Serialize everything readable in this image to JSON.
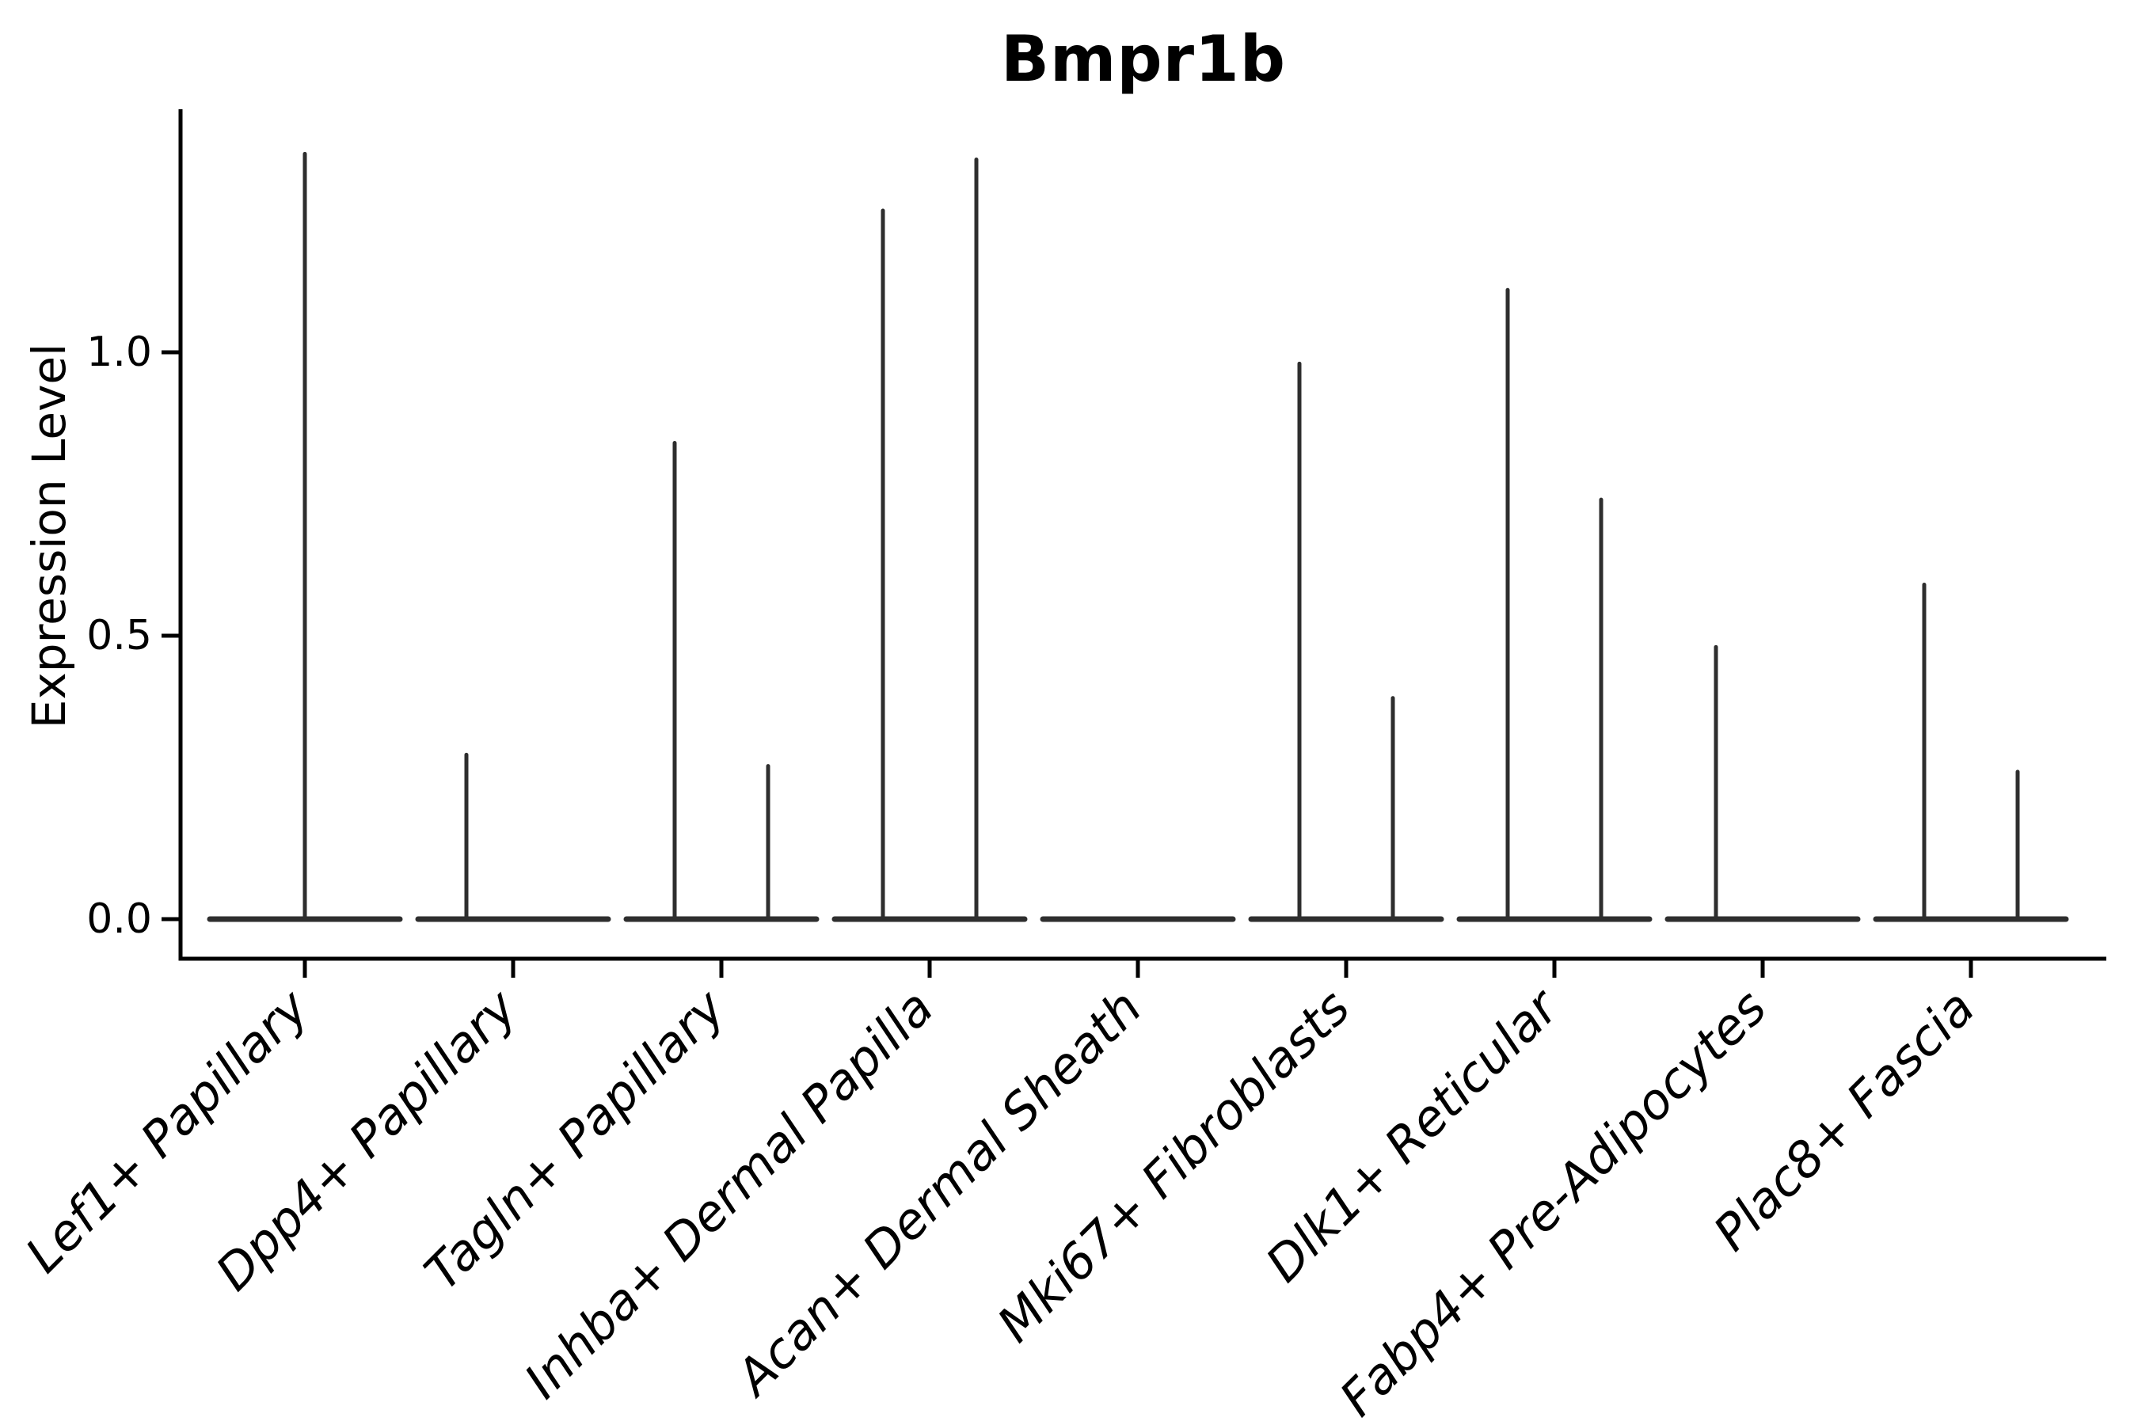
{
  "figure": {
    "background": "#ffffff"
  },
  "chart_data": {
    "type": "violin",
    "title": "Bmpr1b",
    "xlabel": "",
    "ylabel": "Expression Level",
    "yticks": [
      "0.0",
      "0.5",
      "1.0"
    ],
    "ytick_values": [
      0.0,
      0.5,
      1.0
    ],
    "ylim": [
      -0.07,
      1.43
    ],
    "grid": false,
    "legend": "none",
    "x_label_style": "italic, rotated 45deg, anchored at tick",
    "categories": [
      "Lef1+ Papillary",
      "Dpp4+ Papillary",
      "Tagln+ Papillary",
      "Inhba+ Dermal Papilla",
      "Acan+ Dermal Sheath",
      "Mki67+ Fibroblasts",
      "Dlk1+ Reticular",
      "Fabp4+ Pre-Adipocytes",
      "Plac8+ Fascia"
    ],
    "violins": [
      {
        "category": "Lef1+ Papillary",
        "baseline_value": 0.0,
        "spikes": [
          {
            "position": "center",
            "max": 1.35
          }
        ]
      },
      {
        "category": "Dpp4+ Papillary",
        "baseline_value": 0.0,
        "spikes": [
          {
            "position": "left",
            "max": 0.29
          }
        ]
      },
      {
        "category": "Tagln+ Papillary",
        "baseline_value": 0.0,
        "spikes": [
          {
            "position": "left",
            "max": 0.84
          },
          {
            "position": "right",
            "max": 0.27
          }
        ]
      },
      {
        "category": "Inhba+ Dermal Papilla",
        "baseline_value": 0.0,
        "spikes": [
          {
            "position": "left",
            "max": 1.25
          },
          {
            "position": "right",
            "max": 1.34
          }
        ]
      },
      {
        "category": "Acan+ Dermal Sheath",
        "baseline_value": 0.0,
        "spikes": []
      },
      {
        "category": "Mki67+ Fibroblasts",
        "baseline_value": 0.0,
        "spikes": [
          {
            "position": "left",
            "max": 0.98
          },
          {
            "position": "right",
            "max": 0.39
          }
        ]
      },
      {
        "category": "Dlk1+ Reticular",
        "baseline_value": 0.0,
        "spikes": [
          {
            "position": "left",
            "max": 1.11
          },
          {
            "position": "right",
            "max": 0.74
          }
        ]
      },
      {
        "category": "Fabp4+ Pre-Adipocytes",
        "baseline_value": 0.0,
        "spikes": [
          {
            "position": "left",
            "max": 0.48
          }
        ]
      },
      {
        "category": "Plac8+ Fascia",
        "baseline_value": 0.0,
        "spikes": [
          {
            "position": "left",
            "max": 0.59
          },
          {
            "position": "right",
            "max": 0.26
          }
        ]
      }
    ],
    "colors": {
      "violin_line": "#2e2e2e",
      "spine": "#000000",
      "text": "#000000"
    }
  }
}
